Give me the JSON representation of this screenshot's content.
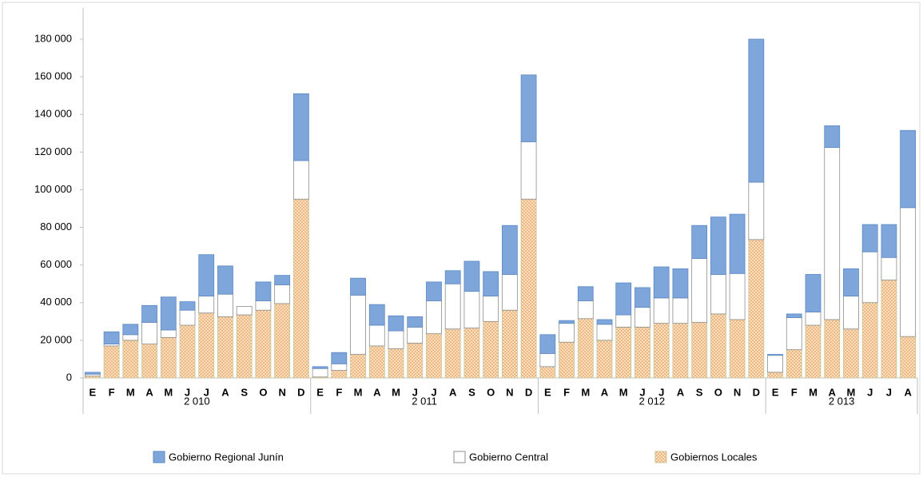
{
  "chart_data": {
    "type": "stacked-bar",
    "groups": [
      {
        "label": "2 010",
        "categories": [
          "E",
          "F",
          "M",
          "A",
          "M",
          "J",
          "J",
          "A",
          "S",
          "O",
          "N",
          "D"
        ]
      },
      {
        "label": "2 011",
        "categories": [
          "E",
          "F",
          "M",
          "A",
          "M",
          "J",
          "J",
          "A",
          "S",
          "O",
          "N",
          "D"
        ]
      },
      {
        "label": "2 012",
        "categories": [
          "E",
          "F",
          "M",
          "A",
          "M",
          "J",
          "J",
          "A",
          "S",
          "O",
          "N",
          "D"
        ]
      },
      {
        "label": "2 013",
        "categories": [
          "E",
          "F",
          "M",
          "A",
          "M",
          "J",
          "J",
          "A"
        ]
      }
    ],
    "series": [
      {
        "name": "Gobierno Regional Junín",
        "color": "#7ea6da",
        "values": [
          [
            1000,
            6500,
            5500,
            9000,
            17500,
            4500,
            22000,
            15000,
            0,
            10000,
            5000,
            35500
          ],
          [
            1000,
            6000,
            9000,
            11000,
            8000,
            5500,
            10000,
            7000,
            16000,
            13000,
            26000,
            35500
          ],
          [
            10000,
            1500,
            7500,
            2500,
            17000,
            10500,
            16500,
            15500,
            17500,
            30500,
            31500,
            76000
          ],
          [
            500,
            2000,
            20000,
            11500,
            14500,
            14500,
            17500,
            41000
          ]
        ]
      },
      {
        "name": "Gobierno Central",
        "color": "#ffffff",
        "values": [
          [
            1000,
            1000,
            3000,
            11500,
            4000,
            8000,
            9000,
            12000,
            4500,
            5000,
            10000,
            20500
          ],
          [
            4500,
            3500,
            31500,
            11000,
            9500,
            8500,
            17500,
            24000,
            19500,
            13500,
            19000,
            30500
          ],
          [
            7000,
            10000,
            9500,
            8500,
            6500,
            10500,
            13500,
            13500,
            34000,
            21000,
            24500,
            30500
          ],
          [
            9000,
            17000,
            7000,
            91500,
            17500,
            27000,
            12000,
            68500
          ]
        ]
      },
      {
        "name": "Gobiernos Locales",
        "color": "#f9dcb8",
        "hatch": true,
        "values": [
          [
            1000,
            17000,
            20000,
            18000,
            21500,
            28000,
            34500,
            32500,
            33500,
            36000,
            39500,
            95000
          ],
          [
            500,
            4000,
            12500,
            17000,
            15500,
            18500,
            23500,
            26000,
            26500,
            30000,
            36000,
            95000
          ],
          [
            6000,
            19000,
            31500,
            20000,
            27000,
            27000,
            29000,
            29000,
            29500,
            34000,
            31000,
            73500
          ],
          [
            3000,
            15000,
            28000,
            31000,
            26000,
            40000,
            52000,
            22000
          ]
        ]
      }
    ],
    "ylim": [
      0,
      180000
    ],
    "yticks": [
      0,
      {
        "value": 20000,
        "label": "20 000"
      },
      {
        "value": 40000,
        "label": "40 000"
      },
      {
        "value": 60000,
        "label": "60 000"
      },
      {
        "value": 80000,
        "label": "80 000"
      },
      {
        "value": 100000,
        "label": "100 000"
      },
      {
        "value": 120000,
        "label": "120 000"
      },
      {
        "value": 140000,
        "label": "140 000"
      },
      {
        "value": 160000,
        "label": "160 000"
      },
      {
        "value": 180000,
        "label": "180 000"
      }
    ]
  }
}
